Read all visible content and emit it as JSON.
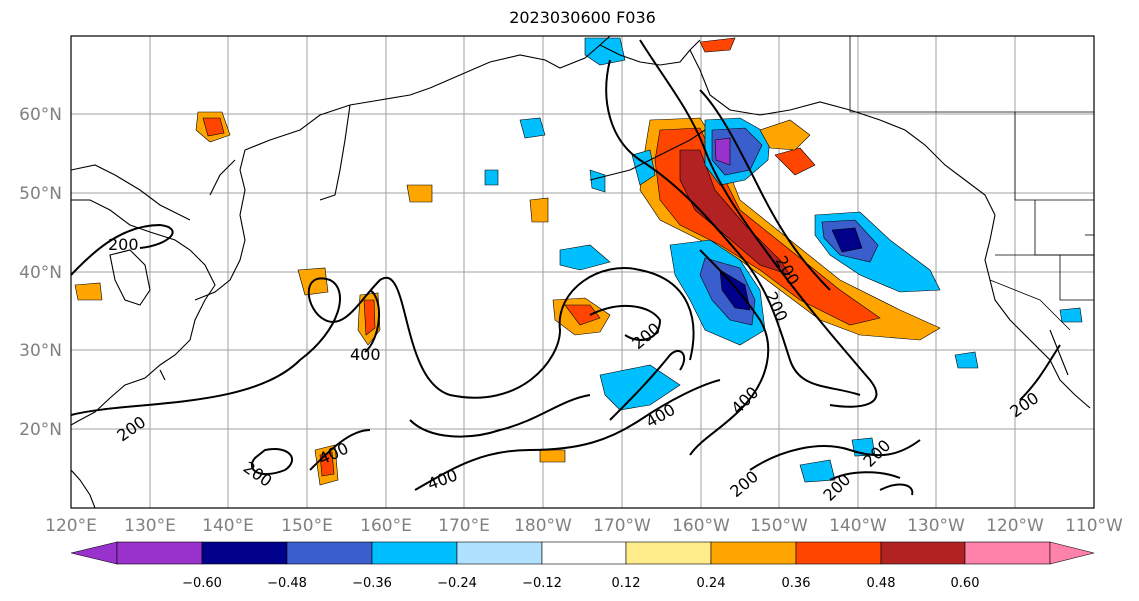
{
  "title": "2023030600 F036",
  "lon_labels": [
    "120°E",
    "130°E",
    "140°E",
    "150°E",
    "160°E",
    "170°E",
    "180°W",
    "170°W",
    "160°W",
    "150°W",
    "140°W",
    "130°W",
    "120°W",
    "110°W"
  ],
  "lat_labels": [
    "60°N",
    "50°N",
    "40°N",
    "30°N",
    "20°N"
  ],
  "colorbar": {
    "ticks": [
      "−0.60",
      "−0.48",
      "−0.36",
      "−0.24",
      "−0.12",
      "0.12",
      "0.24",
      "0.36",
      "0.48",
      "0.60"
    ],
    "colors": [
      "#9932cc",
      "#00008b",
      "#3a5fcd",
      "#00bfff",
      "#b0e2ff",
      "#ffffff",
      "#ffec8b",
      "#ffa500",
      "#ff4500",
      "#b22222",
      "#ff82ab"
    ]
  },
  "contour_labels": [
    "200",
    "200",
    "200",
    "200",
    "200",
    "200",
    "200",
    "200",
    "200",
    "200",
    "200",
    "400",
    "400",
    "400",
    "400",
    "400",
    "400",
    "400"
  ],
  "map_extent": {
    "lon": [
      120,
      250
    ],
    "lat": [
      10,
      70
    ]
  },
  "contour_color": "#000000",
  "gridline_color": "#a0a0a0"
}
